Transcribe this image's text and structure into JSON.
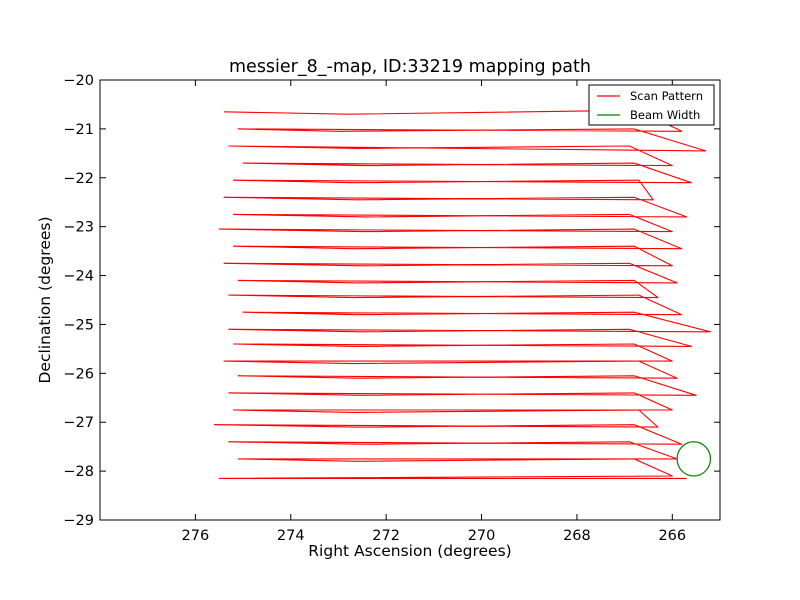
{
  "chart_data": {
    "type": "line",
    "title": "messier_8_-map, ID:33219 mapping path",
    "xlabel": "Right Ascension (degrees)",
    "ylabel": "Declination (degrees)",
    "xlim": [
      278.0,
      265.0
    ],
    "ylim": [
      -29,
      -20
    ],
    "xticks": [
      276,
      274,
      272,
      270,
      268,
      266
    ],
    "yticks": [
      -29,
      -28,
      -27,
      -26,
      -25,
      -24,
      -23,
      -22,
      -21,
      -20
    ],
    "grid": false,
    "legend": {
      "position": "top-right",
      "entries": [
        {
          "label": "Scan Pattern",
          "color": "#ff0000"
        },
        {
          "label": "Beam Width",
          "color": "#008000"
        }
      ]
    },
    "series": [
      {
        "name": "Scan Pattern",
        "kind": "line",
        "color": "#ff0000",
        "x": [
          275.4,
          272.8,
          266.7,
          265.8,
          275.1,
          273.0,
          266.8,
          265.3,
          275.3,
          272.6,
          266.9,
          266.0,
          275.0,
          272.5,
          266.8,
          265.6,
          275.2,
          272.7,
          266.7,
          266.4,
          275.4,
          272.6,
          266.8,
          265.7,
          275.2,
          272.4,
          266.9,
          266.0,
          275.5,
          272.5,
          266.8,
          265.8,
          275.2,
          272.7,
          266.8,
          266.0,
          275.4,
          272.5,
          266.9,
          265.9,
          275.1,
          272.6,
          266.8,
          266.3,
          275.3,
          272.7,
          266.7,
          265.8,
          275.0,
          272.6,
          266.8,
          265.2,
          275.3,
          272.5,
          266.9,
          265.6,
          275.2,
          272.6,
          266.8,
          266.0,
          275.4,
          272.7,
          266.7,
          265.9,
          275.1,
          272.6,
          266.8,
          265.5,
          275.3,
          272.5,
          266.8,
          266.0,
          275.2,
          272.7,
          266.7,
          266.3,
          275.6,
          272.6,
          266.8,
          265.8,
          275.3,
          272.5,
          266.9,
          265.9,
          275.1,
          272.6,
          266.8,
          266.0,
          275.5,
          272.7,
          266.7,
          265.7
        ],
        "y": [
          -20.65,
          -20.7,
          -20.62,
          -21.05,
          -21.0,
          -21.05,
          -21.0,
          -21.45,
          -21.35,
          -21.4,
          -21.35,
          -21.75,
          -21.7,
          -21.75,
          -21.7,
          -22.1,
          -22.05,
          -22.1,
          -22.05,
          -22.45,
          -22.4,
          -22.45,
          -22.4,
          -22.8,
          -22.75,
          -22.8,
          -22.75,
          -23.1,
          -23.05,
          -23.1,
          -23.05,
          -23.45,
          -23.4,
          -23.45,
          -23.4,
          -23.8,
          -23.75,
          -23.8,
          -23.75,
          -24.15,
          -24.1,
          -24.15,
          -24.1,
          -24.45,
          -24.4,
          -24.45,
          -24.4,
          -24.8,
          -24.75,
          -24.8,
          -24.75,
          -25.15,
          -25.1,
          -25.15,
          -25.1,
          -25.45,
          -25.4,
          -25.45,
          -25.4,
          -25.75,
          -25.75,
          -25.8,
          -25.75,
          -26.1,
          -26.05,
          -26.1,
          -26.05,
          -26.45,
          -26.4,
          -26.45,
          -26.4,
          -26.75,
          -26.75,
          -26.8,
          -26.75,
          -27.1,
          -27.05,
          -27.1,
          -27.05,
          -27.45,
          -27.4,
          -27.45,
          -27.4,
          -27.75,
          -27.75,
          -27.8,
          -27.75,
          -28.1,
          -28.15,
          -28.15,
          -28.15,
          -28.15
        ]
      },
      {
        "name": "Beam Width",
        "kind": "circle",
        "color": "#008000",
        "center": [
          265.55,
          -27.75
        ],
        "radius": 0.35
      }
    ]
  }
}
